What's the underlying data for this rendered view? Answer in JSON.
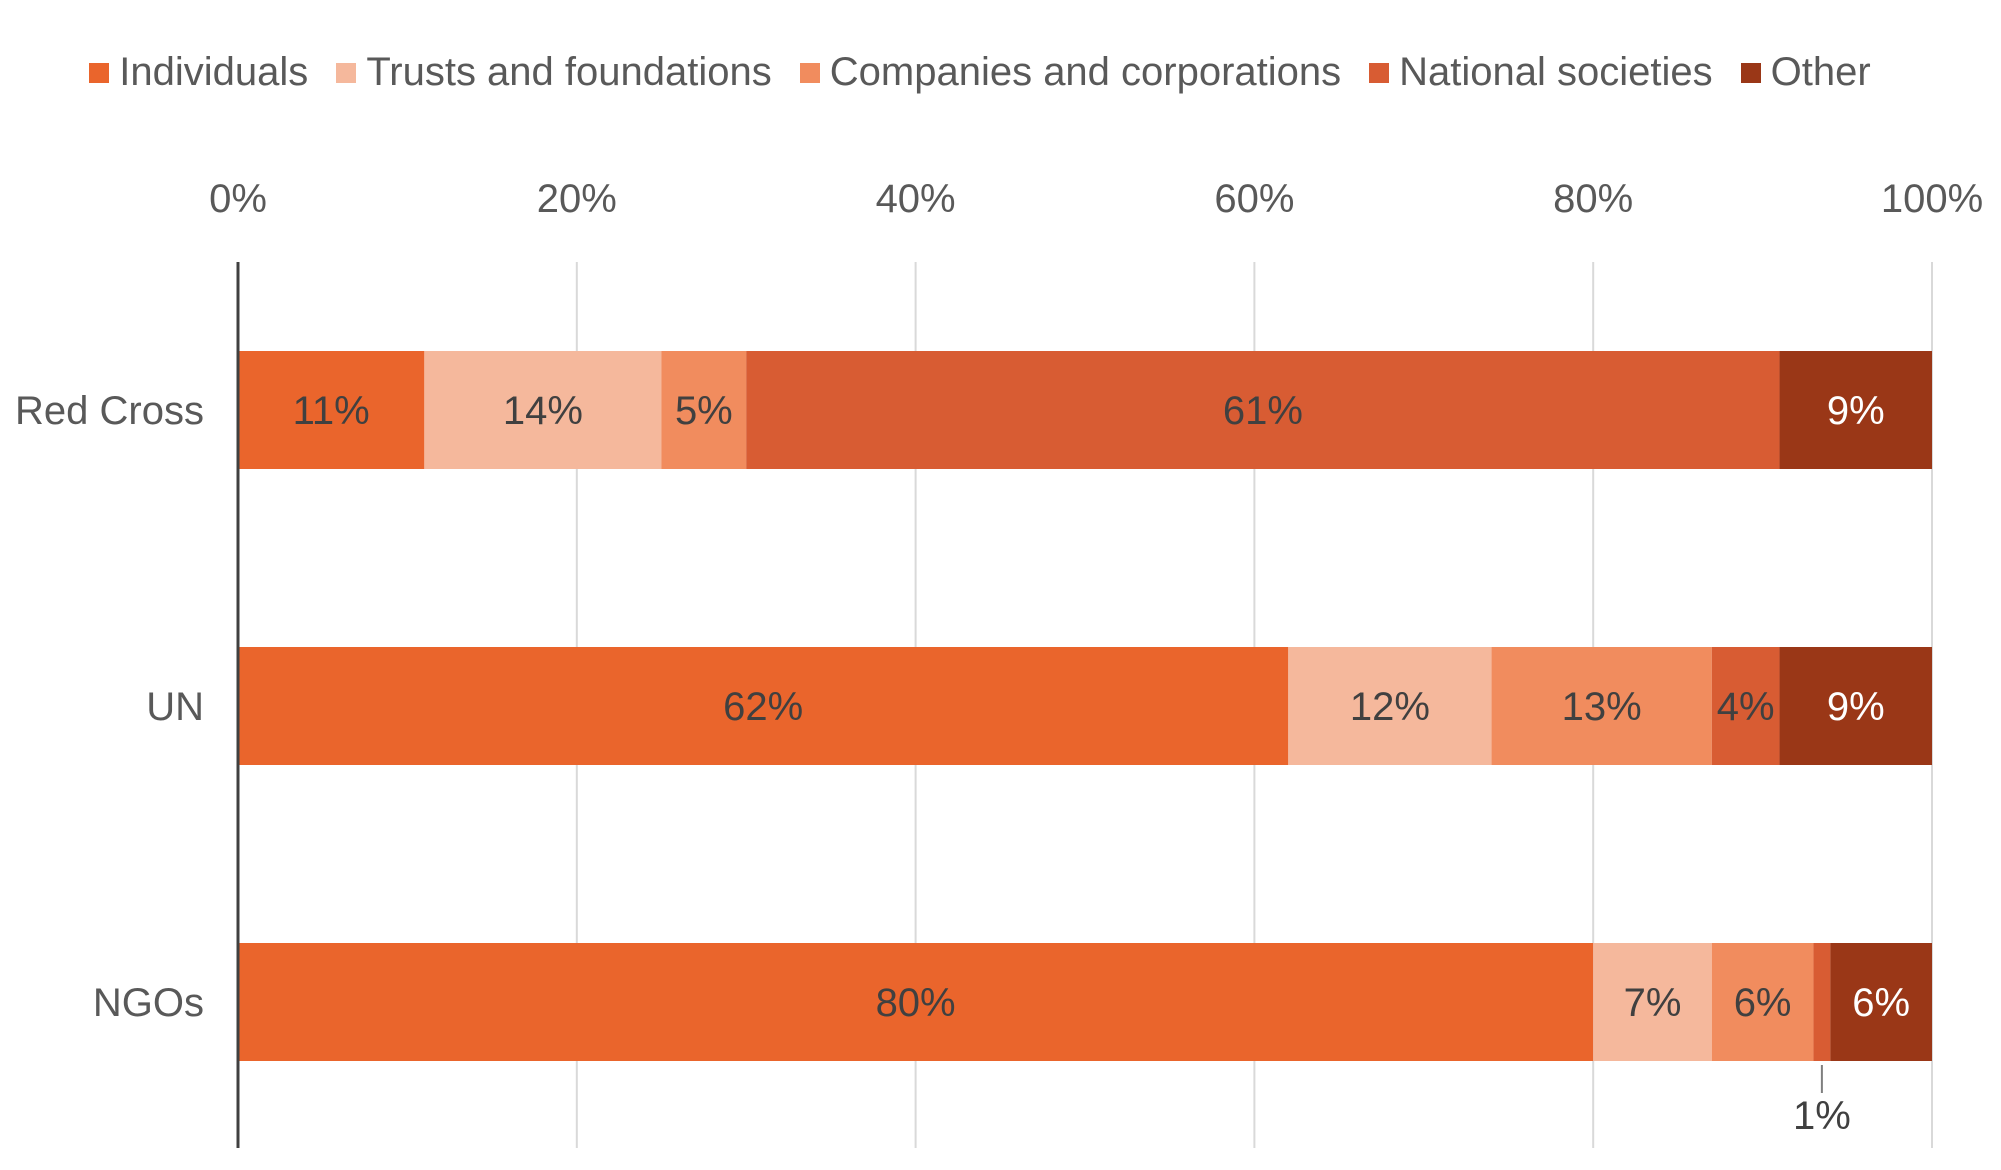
{
  "chart_data": {
    "type": "bar",
    "orientation": "horizontal",
    "stacked": "percent",
    "title": "",
    "xlabel": "",
    "ylabel": "",
    "xlim": [
      0,
      100
    ],
    "x_ticks": [
      "0%",
      "20%",
      "40%",
      "60%",
      "80%",
      "100%"
    ],
    "x_axis_position": "top",
    "grid": true,
    "legend_position": "top",
    "categories": [
      "Red Cross",
      "UN",
      "NGOs"
    ],
    "series": [
      {
        "name": "Individuals",
        "color": "#EA652C",
        "values": [
          11,
          62,
          80
        ],
        "labels": [
          "11%",
          "62%",
          "80%"
        ]
      },
      {
        "name": "Trusts and foundations",
        "color": "#F5B89C",
        "values": [
          14,
          12,
          7
        ],
        "labels": [
          "14%",
          "12%",
          "7%"
        ]
      },
      {
        "name": "Companies and corporations",
        "color": "#F18C5E",
        "values": [
          5,
          13,
          6
        ],
        "labels": [
          "5%",
          "13%",
          "6%"
        ]
      },
      {
        "name": "National societies",
        "color": "#D85C33",
        "values": [
          61,
          4,
          1
        ],
        "labels": [
          "61%",
          "4%",
          "1%"
        ]
      },
      {
        "name": "Other",
        "color": "#9A3717",
        "values": [
          9,
          9,
          6
        ],
        "labels": [
          "9%",
          "9%",
          "6%"
        ]
      }
    ]
  }
}
